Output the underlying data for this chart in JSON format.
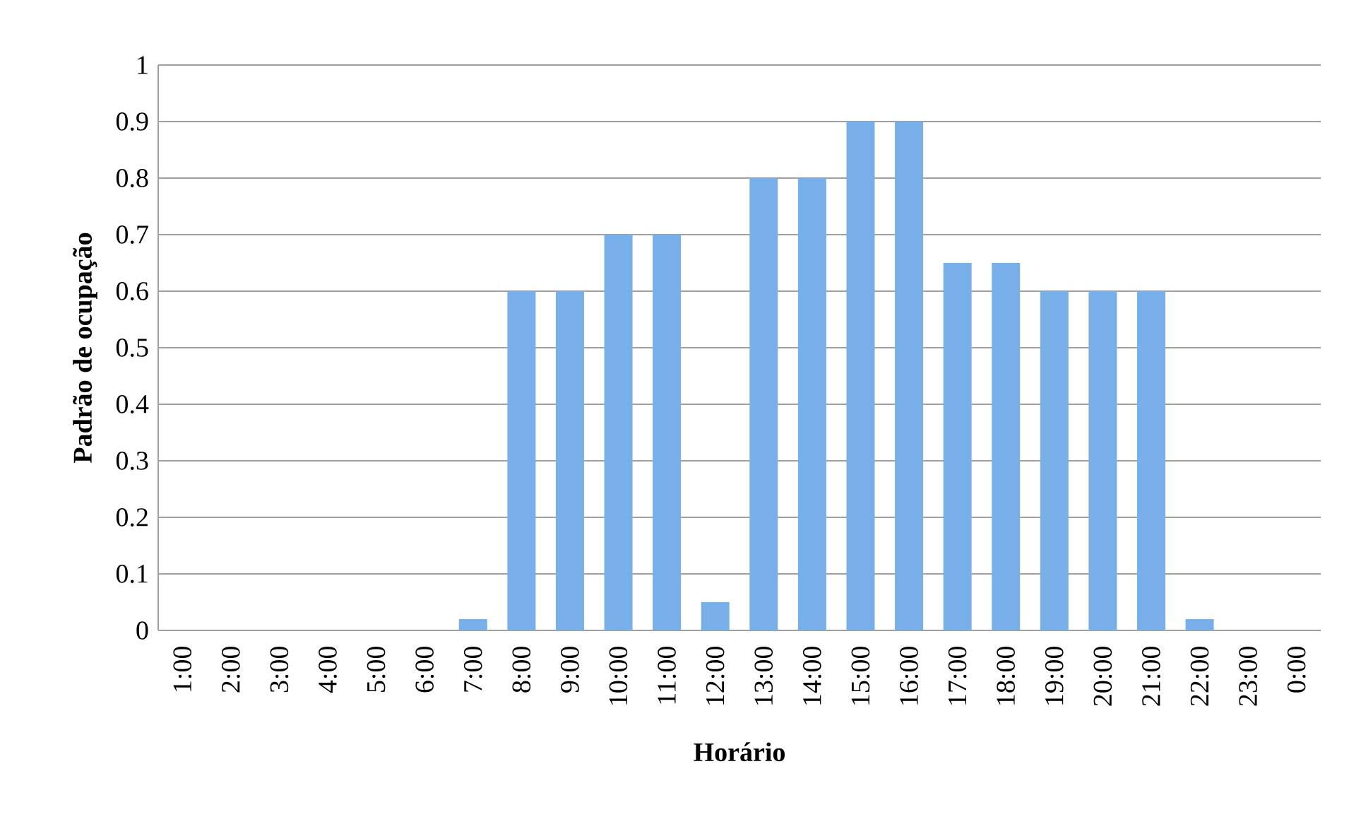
{
  "chart_data": {
    "type": "bar",
    "xlabel": "Horário",
    "ylabel": "Padrão de ocupação",
    "categories": [
      "1:00",
      "2:00",
      "3:00",
      "4:00",
      "5:00",
      "6:00",
      "7:00",
      "8:00",
      "9:00",
      "10:00",
      "11:00",
      "12:00",
      "13:00",
      "14:00",
      "15:00",
      "16:00",
      "17:00",
      "18:00",
      "19:00",
      "20:00",
      "21:00",
      "22:00",
      "23:00",
      "0:00"
    ],
    "values": [
      0,
      0,
      0,
      0,
      0,
      0,
      0.02,
      0.6,
      0.6,
      0.7,
      0.7,
      0.05,
      0.8,
      0.8,
      0.9,
      0.9,
      0.65,
      0.65,
      0.6,
      0.6,
      0.6,
      0.02,
      0,
      0
    ],
    "color": "#79afe8",
    "ylim": [
      0,
      1
    ],
    "yticks": [
      0,
      0.1,
      0.2,
      0.3,
      0.4,
      0.5,
      0.6,
      0.7,
      0.8,
      0.9,
      1
    ],
    "grid": "y"
  }
}
